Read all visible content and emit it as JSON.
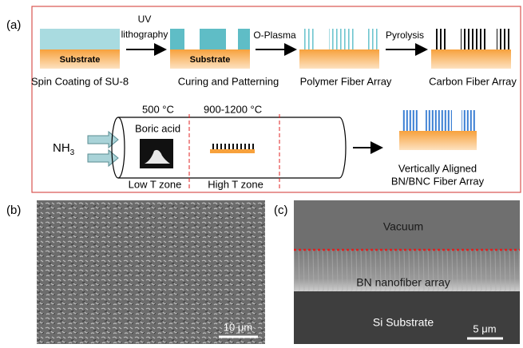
{
  "panel_a": {
    "label": "(a)",
    "steps": [
      {
        "caption": "Spin Coating of SU-8",
        "substrate": "Substrate"
      },
      {
        "caption": "Curing and Patterning",
        "substrate": "Substrate"
      },
      {
        "caption": "Polymer Fiber Array"
      },
      {
        "caption": "Carbon Fiber Array"
      }
    ],
    "transitions": [
      {
        "lines": [
          "UV",
          "lithography"
        ]
      },
      {
        "lines": [
          "O-Plasma"
        ]
      },
      {
        "lines": [
          "Pyrolysis"
        ]
      }
    ],
    "furnace": {
      "gas": "NH",
      "gas_subscript": "3",
      "low_temp": "500 °C",
      "high_temp": "900-1200 °C",
      "precursor": "Boric acid",
      "low_zone": "Low T zone",
      "high_zone": "High T zone"
    },
    "product": [
      "Vertically Aligned",
      "BN/BNC Fiber Array"
    ]
  },
  "panel_b": {
    "label": "(b)",
    "scale_bar": "10 μm"
  },
  "panel_c": {
    "label": "(c)",
    "regions": [
      "Vacuum",
      "BN nanofiber array",
      "Si Substrate"
    ],
    "scale_bar": "5 μm"
  }
}
